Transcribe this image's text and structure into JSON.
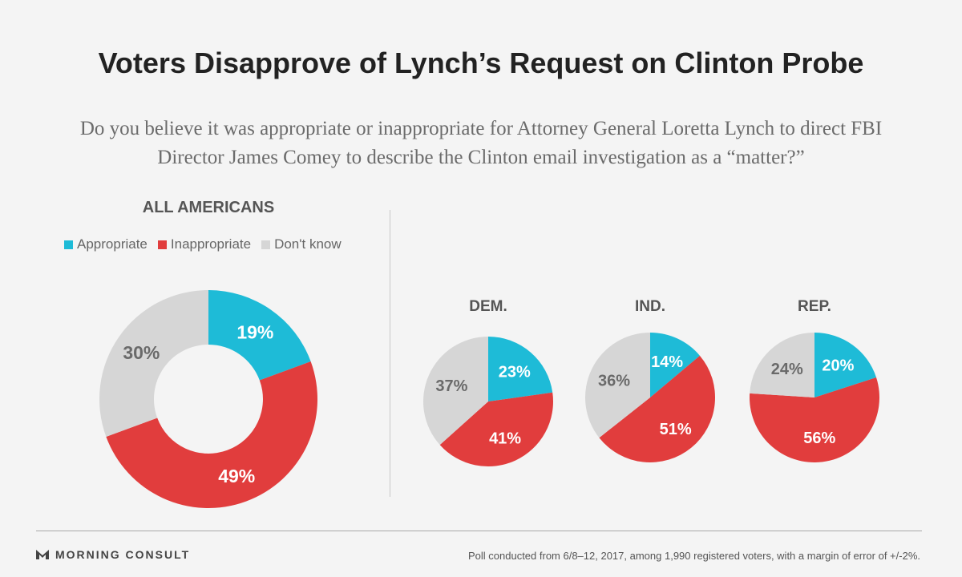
{
  "header": {
    "title": "Voters Disapprove of Lynch’s Request on Clinton Probe",
    "subtitle": "Do you believe it was appropriate or inappropriate for Attorney General Loretta Lynch to direct FBI Director James Comey to describe the Clinton email investigation as a “matter?”"
  },
  "colors": {
    "appropriate": "#1ebbd7",
    "inappropriate": "#e13d3d",
    "dont_know": "#d6d6d6"
  },
  "chart_data": [
    {
      "type": "pie",
      "style": "donut",
      "title": "ALL AMERICANS",
      "legend": [
        "Appropriate",
        "Inappropriate",
        "Don't know"
      ],
      "categories": [
        "Appropriate",
        "Inappropriate",
        "Don't know"
      ],
      "values": [
        19,
        49,
        30
      ],
      "labels": [
        "19%",
        "49%",
        "30%"
      ]
    },
    {
      "type": "pie",
      "title": "DEM.",
      "categories": [
        "Appropriate",
        "Inappropriate",
        "Don't know"
      ],
      "values": [
        23,
        41,
        37
      ],
      "labels": [
        "23%",
        "41%",
        "37%"
      ]
    },
    {
      "type": "pie",
      "title": "IND.",
      "categories": [
        "Appropriate",
        "Inappropriate",
        "Don't know"
      ],
      "values": [
        14,
        51,
        36
      ],
      "labels": [
        "14%",
        "51%",
        "36%"
      ]
    },
    {
      "type": "pie",
      "title": "REP.",
      "categories": [
        "Appropriate",
        "Inappropriate",
        "Don't know"
      ],
      "values": [
        20,
        56,
        24
      ],
      "labels": [
        "20%",
        "56%",
        "24%"
      ]
    }
  ],
  "footer": {
    "brand": "MORNING CONSULT",
    "note": "Poll conducted from 6/8–12, 2017, among 1,990 registered voters, with a margin of error of +/-2%."
  }
}
